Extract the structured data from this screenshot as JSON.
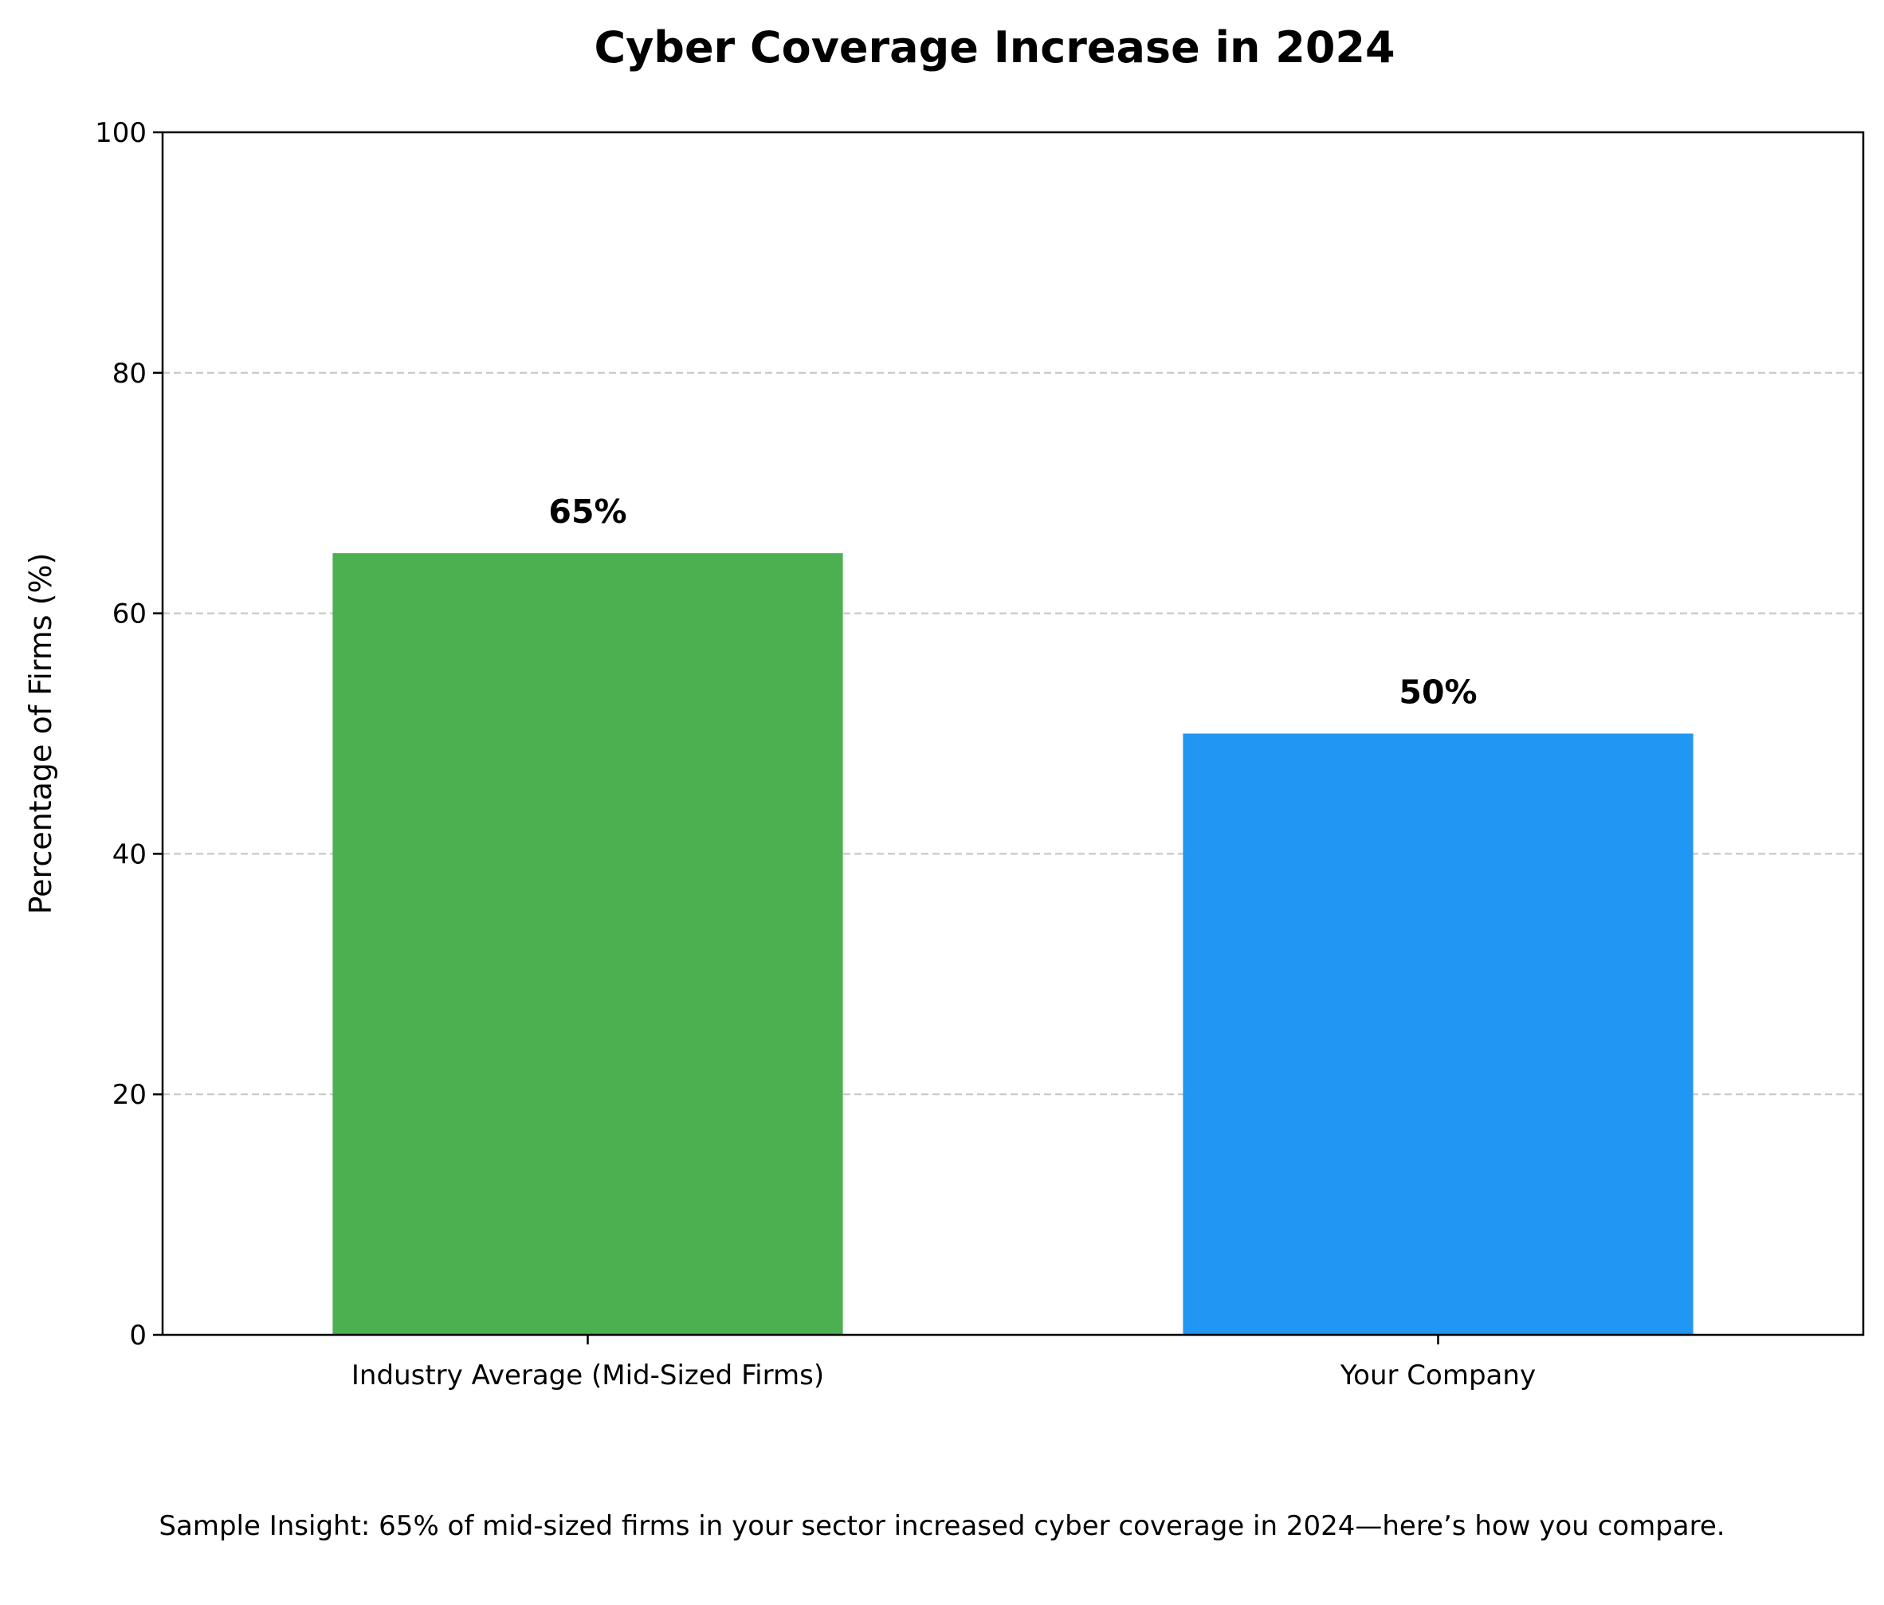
{
  "chart_data": {
    "type": "bar",
    "title": "Cyber Coverage Increase in 2024",
    "xlabel": "",
    "ylabel": "Percentage of Firms (%)",
    "categories": [
      "Industry Average (Mid-Sized Firms)",
      "Your Company"
    ],
    "values": [
      65,
      50
    ],
    "value_labels": [
      "65%",
      "50%"
    ],
    "colors": [
      "#4caf50",
      "#2196f3"
    ],
    "ylim": [
      0,
      100
    ],
    "yticks": [
      0,
      20,
      40,
      60,
      80,
      100
    ],
    "grid": "y-dashed",
    "grid_color": "#c8c8c8"
  },
  "footnote": "Sample Insight: 65% of mid-sized firms in your sector increased cyber coverage in 2024—here’s how you compare."
}
